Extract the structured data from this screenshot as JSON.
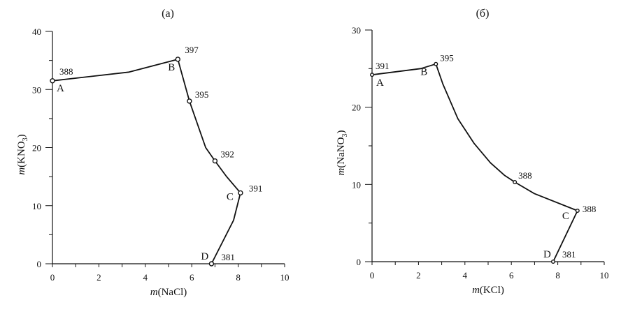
{
  "chart_data": [
    {
      "type": "line",
      "title": "(a)",
      "xlabel_italic": "m",
      "xlabel_rest": "(NaCl)",
      "ylabel_italic": "m",
      "ylabel_rest": "(KNO",
      "ylabel_sub": "3",
      "ylabel_close": ")",
      "xlim": [
        0,
        10
      ],
      "ylim": [
        0,
        40
      ],
      "xticks": [
        0,
        2,
        4,
        6,
        8,
        10
      ],
      "yticks": [
        0,
        10,
        20,
        30,
        40
      ],
      "xminor": 1,
      "yminor": 5,
      "line": [
        [
          0,
          31.5
        ],
        [
          3.3,
          33.0
        ],
        [
          5.4,
          35.2
        ],
        [
          5.9,
          28.0
        ],
        [
          6.6,
          20.0
        ],
        [
          7.0,
          17.7
        ],
        [
          7.5,
          15.0
        ],
        [
          8.1,
          12.2
        ],
        [
          7.8,
          7.5
        ],
        [
          6.85,
          0
        ]
      ],
      "points": [
        {
          "x": 0,
          "y": 31.5,
          "label": "388",
          "letter": "A"
        },
        {
          "x": 5.4,
          "y": 35.2,
          "label": "397",
          "letter": "B"
        },
        {
          "x": 5.9,
          "y": 28.0,
          "label": "395",
          "letter": ""
        },
        {
          "x": 7.0,
          "y": 17.7,
          "label": "392",
          "letter": ""
        },
        {
          "x": 8.1,
          "y": 12.2,
          "label": "391",
          "letter": "C"
        },
        {
          "x": 6.85,
          "y": 0,
          "label": "381",
          "letter": "D"
        }
      ]
    },
    {
      "type": "line",
      "title": "(б)",
      "xlabel_italic": "m",
      "xlabel_rest": "(KCl)",
      "ylabel_italic": "m",
      "ylabel_rest": "(NaNO",
      "ylabel_sub": "3",
      "ylabel_close": ")",
      "xlim": [
        0,
        10
      ],
      "ylim": [
        0,
        30
      ],
      "xticks": [
        0,
        2,
        4,
        6,
        8,
        10
      ],
      "yticks": [
        0,
        10,
        20,
        30
      ],
      "xminor": 1,
      "yminor": 5,
      "line": [
        [
          0,
          24.2
        ],
        [
          2.1,
          25.0
        ],
        [
          2.75,
          25.6
        ],
        [
          3.05,
          23.0
        ],
        [
          3.7,
          18.5
        ],
        [
          4.4,
          15.3
        ],
        [
          5.1,
          12.8
        ],
        [
          5.7,
          11.2
        ],
        [
          6.15,
          10.3
        ],
        [
          7.0,
          8.8
        ],
        [
          8.85,
          6.6
        ],
        [
          7.8,
          0
        ]
      ],
      "points": [
        {
          "x": 0,
          "y": 24.2,
          "label": "391",
          "letter": "A"
        },
        {
          "x": 2.75,
          "y": 25.6,
          "label": "395",
          "letter": "B"
        },
        {
          "x": 6.15,
          "y": 10.3,
          "label": "388",
          "letter": ""
        },
        {
          "x": 8.85,
          "y": 6.6,
          "label": "388",
          "letter": "C"
        },
        {
          "x": 7.8,
          "y": 0,
          "label": "381",
          "letter": "D"
        }
      ]
    }
  ]
}
